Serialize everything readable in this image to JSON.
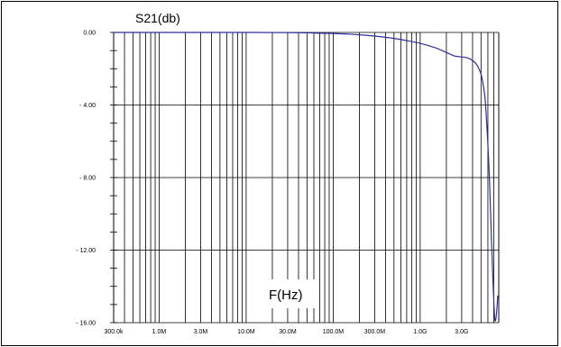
{
  "chart_data": {
    "type": "line",
    "title": "",
    "ylabel": "S21(db)",
    "xlabel": "F(Hz)",
    "x_scale": "log",
    "xlim": [
      300000,
      8000000000
    ],
    "ylim": [
      -16,
      0
    ],
    "grid": true,
    "x_ticks": [
      300000,
      1000000,
      3000000,
      10000000,
      30000000,
      100000000,
      300000000,
      1000000000,
      3000000000
    ],
    "x_tick_labels": [
      "300.0k",
      "1.0M",
      "3.0M",
      "10.0M",
      "30.0M",
      "100.0M",
      "300.0M",
      "1.0G",
      "3.0G"
    ],
    "y_ticks": [
      0,
      -4,
      -8,
      -12,
      -16
    ],
    "y_tick_labels": [
      "0.00",
      "- 4.00",
      "- 8.00",
      "- 12.00",
      "- 16.00"
    ],
    "line_color": "#2e2e9e",
    "series": [
      {
        "x": [
          300000,
          1000000,
          3000000,
          10000000,
          30000000,
          60000000,
          100000000,
          150000000,
          200000000,
          300000000,
          500000000,
          700000000,
          1000000000,
          1500000000,
          2000000000,
          2500000000,
          3000000000,
          3500000000,
          4000000000,
          4500000000,
          5000000000,
          5300000000,
          5600000000,
          6000000000,
          6300000000,
          6600000000,
          6900000000,
          7200000000,
          7500000000,
          7800000000
        ],
        "y": [
          0,
          0,
          0,
          0,
          -0.01,
          -0.03,
          -0.06,
          -0.09,
          -0.13,
          -0.2,
          -0.33,
          -0.45,
          -0.6,
          -0.85,
          -1.1,
          -1.3,
          -1.35,
          -1.4,
          -1.55,
          -1.8,
          -2.3,
          -2.9,
          -3.8,
          -6.2,
          -8.5,
          -11.5,
          -14.0,
          -15.8,
          -15.6,
          -14.5
        ]
      }
    ]
  }
}
